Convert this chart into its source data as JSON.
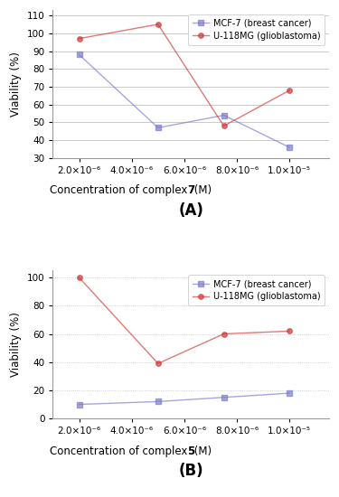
{
  "x_values": [
    2e-06,
    5e-06,
    7.5e-06,
    1e-05
  ],
  "panel_A": {
    "mcf7": [
      88,
      47,
      54,
      36
    ],
    "u118": [
      97,
      105,
      48,
      68
    ],
    "complex_num": "7",
    "ylabel": "Viability (%)",
    "ylim": [
      30,
      113
    ],
    "yticks": [
      30,
      40,
      50,
      60,
      70,
      80,
      90,
      100,
      110
    ],
    "label": "(A)",
    "grid_style": "solid"
  },
  "panel_B": {
    "mcf7": [
      10,
      12,
      15,
      18
    ],
    "u118": [
      100,
      39,
      60,
      62
    ],
    "complex_num": "5",
    "ylabel": "Viability (%)",
    "ylim": [
      0,
      105
    ],
    "yticks": [
      0,
      20,
      40,
      60,
      80,
      100
    ],
    "label": "(B)",
    "grid_style": "dotted"
  },
  "mcf7_color": "#7777cc",
  "u118_color": "#cc3333",
  "mcf7_label": "MCF-7 (breast cancer)",
  "u118_label": "U-118MG (glioblastoma)",
  "marker_mcf7": "s",
  "marker_u118": "o",
  "marker_size": 4,
  "line_alpha": 0.65,
  "line_width": 1.0,
  "bg_color": "#ffffff",
  "xtick_positions": [
    2e-06,
    4e-06,
    6e-06,
    8e-06,
    1e-05
  ],
  "xtick_labels": [
    "2.0×10⁻⁶",
    "4.0×10⁻⁶",
    "6.0×10⁻⁶",
    "8.0×10⁻⁶",
    "1.0×10⁻⁵"
  ],
  "xlim": [
    1e-06,
    1.15e-05
  ]
}
